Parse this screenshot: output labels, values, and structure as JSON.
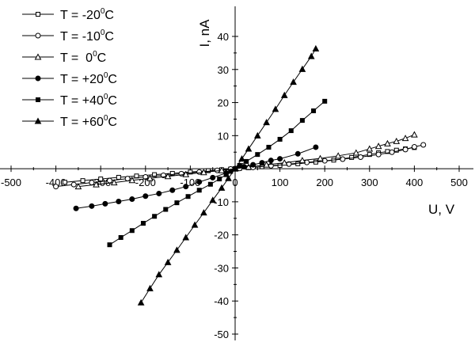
{
  "chart_data": {
    "type": "scatter",
    "xlabel": "U, V",
    "ylabel": "I, nA",
    "xlim": [
      -500,
      500
    ],
    "ylim": [
      -50,
      45
    ],
    "xticks": [
      -500,
      -400,
      -300,
      -200,
      -100,
      0,
      100,
      200,
      300,
      400,
      500
    ],
    "yticks": [
      -50,
      -40,
      -30,
      -20,
      -10,
      0,
      10,
      20,
      30,
      40
    ],
    "legend_position": "top-left",
    "series": [
      {
        "name": "T = -20⁰C",
        "label_prefix": "T = -20",
        "label_sup": "0",
        "label_suffix": "C",
        "marker": "open-square",
        "x": [
          -380,
          -340,
          -300,
          -260,
          -220,
          -180,
          -140,
          -100,
          -60,
          -30,
          -10,
          0,
          10,
          30,
          60,
          100,
          140,
          180,
          220,
          260,
          300,
          320,
          340,
          360,
          380,
          400
        ],
        "y": [
          -4.1,
          -3.6,
          -3.1,
          -2.6,
          -2.2,
          -1.8,
          -1.4,
          -1.0,
          -0.6,
          -0.3,
          -0.1,
          0,
          0.1,
          0.3,
          0.6,
          1.0,
          1.5,
          2.0,
          2.6,
          3.4,
          4.3,
          4.8,
          5.2,
          5.6,
          6.0,
          6.4
        ]
      },
      {
        "name": "T = -10⁰C",
        "label_prefix": "T = -10",
        "label_sup": "0",
        "label_suffix": "C",
        "marker": "open-circle",
        "x": [
          -400,
          -360,
          -320,
          -280,
          -240,
          -200,
          -160,
          -120,
          -80,
          -40,
          -10,
          0,
          10,
          40,
          80,
          120,
          160,
          200,
          240,
          280,
          320,
          350,
          380,
          400,
          420
        ],
        "y": [
          -5.4,
          -4.8,
          -4.2,
          -3.6,
          -3.0,
          -2.5,
          -2.0,
          -1.5,
          -1.0,
          -0.5,
          -0.1,
          0,
          0.1,
          0.4,
          0.9,
          1.4,
          1.9,
          2.4,
          2.9,
          3.5,
          4.3,
          5.0,
          5.8,
          6.6,
          7.2
        ]
      },
      {
        "name": "T = 0⁰C",
        "label_prefix": "T =  0",
        "label_sup": "0",
        "label_suffix": "C",
        "marker": "open-triangle",
        "x": [
          -350,
          -310,
          -270,
          -230,
          -190,
          -150,
          -110,
          -70,
          -30,
          0,
          30,
          70,
          110,
          150,
          190,
          230,
          270,
          300,
          320,
          340,
          360,
          380,
          400
        ],
        "y": [
          -5.4,
          -4.8,
          -4.2,
          -3.5,
          -2.9,
          -2.3,
          -1.7,
          -1.1,
          -0.5,
          0,
          0.5,
          1.2,
          1.8,
          2.5,
          3.1,
          3.9,
          4.8,
          6.0,
          6.8,
          7.6,
          8.3,
          9.2,
          10.3
        ]
      },
      {
        "name": "T = +20⁰C",
        "label_prefix": "T = +20",
        "label_sup": "0",
        "label_suffix": "C",
        "marker": "filled-circle",
        "x": [
          -355,
          -320,
          -290,
          -260,
          -230,
          -200,
          -170,
          -140,
          -110,
          -80,
          -50,
          -20,
          0,
          20,
          40,
          60,
          80,
          100,
          140,
          180
        ],
        "y": [
          -12.0,
          -11.3,
          -10.6,
          -9.9,
          -9.2,
          -8.3,
          -7.5,
          -6.5,
          -5.4,
          -4.0,
          -2.7,
          -1.3,
          0,
          0.6,
          1.2,
          1.8,
          2.5,
          3.0,
          4.5,
          6.5
        ]
      },
      {
        "name": "T = +40⁰C",
        "label_prefix": "T = +40",
        "label_sup": "0",
        "label_suffix": "C",
        "marker": "filled-square",
        "x": [
          -280,
          -255,
          -230,
          -205,
          -180,
          -155,
          -130,
          -105,
          -80,
          -55,
          -35,
          -20,
          -10,
          0,
          10,
          25,
          50,
          75,
          100,
          125,
          150,
          175,
          200
        ],
        "y": [
          -23.0,
          -20.8,
          -18.7,
          -16.5,
          -14.4,
          -12.3,
          -10.3,
          -8.4,
          -6.5,
          -4.7,
          -3.1,
          -1.8,
          -0.8,
          0,
          1.0,
          2.2,
          4.3,
          6.5,
          8.9,
          11.5,
          14.6,
          17.5,
          20.4
        ]
      },
      {
        "name": "T = +60⁰C",
        "label_prefix": "T = +60",
        "label_sup": "0",
        "label_suffix": "C",
        "marker": "filled-triangle",
        "x": [
          -210,
          -190,
          -170,
          -150,
          -130,
          -110,
          -90,
          -70,
          -50,
          -30,
          -15,
          0,
          15,
          30,
          50,
          70,
          90,
          110,
          130,
          150,
          170,
          180
        ],
        "y": [
          -40.5,
          -36.2,
          -32.0,
          -28.3,
          -24.6,
          -20.8,
          -17.0,
          -13.3,
          -9.5,
          -5.8,
          -2.9,
          0,
          3.0,
          6.0,
          10.0,
          14.0,
          18.0,
          22.2,
          26.2,
          30.1,
          34.0,
          36.3
        ]
      }
    ]
  }
}
